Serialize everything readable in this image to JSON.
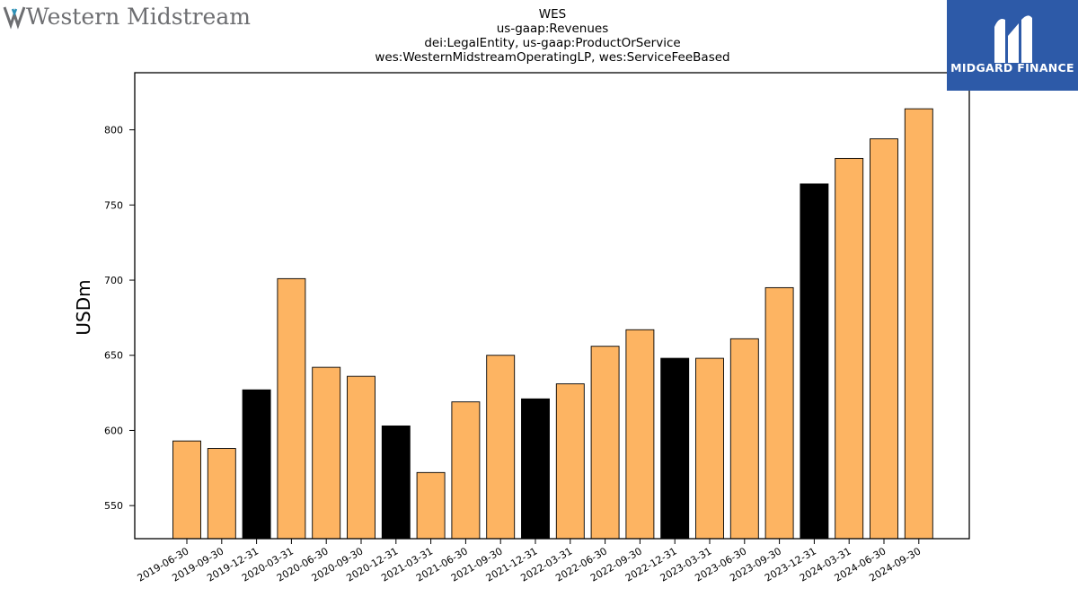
{
  "logos": {
    "company": "Western Midstream",
    "publisher": "MIDGARD FINANCE",
    "publisher_color": "#2d5aa8",
    "company_accent": "#2b8fb5"
  },
  "chart_data": {
    "type": "bar",
    "title": [
      "WES",
      "us-gaap:Revenues",
      "dei:LegalEntity, us-gaap:ProductOrService",
      "wes:WesternMidstreamOperatingLP, wes:ServiceFeeBased"
    ],
    "xlabel": "",
    "ylabel": "USDm",
    "ylim": [
      528,
      838
    ],
    "yticks": [
      550,
      600,
      650,
      700,
      750,
      800
    ],
    "grid": false,
    "colors": {
      "quarter": "#fdb462",
      "year_end": "#000000",
      "edge": "#000000"
    },
    "categories": [
      "2019-06-30",
      "2019-09-30",
      "2019-12-31",
      "2020-03-31",
      "2020-06-30",
      "2020-09-30",
      "2020-12-31",
      "2021-03-31",
      "2021-06-30",
      "2021-09-30",
      "2021-12-31",
      "2022-03-31",
      "2022-06-30",
      "2022-09-30",
      "2022-12-31",
      "2023-03-31",
      "2023-06-30",
      "2023-09-30",
      "2023-12-31",
      "2024-03-31",
      "2024-06-30",
      "2024-09-30"
    ],
    "values": [
      593,
      588,
      627,
      701,
      642,
      636,
      603,
      572,
      619,
      650,
      621,
      631,
      656,
      667,
      648,
      648,
      661,
      695,
      764,
      781,
      794,
      814
    ]
  }
}
